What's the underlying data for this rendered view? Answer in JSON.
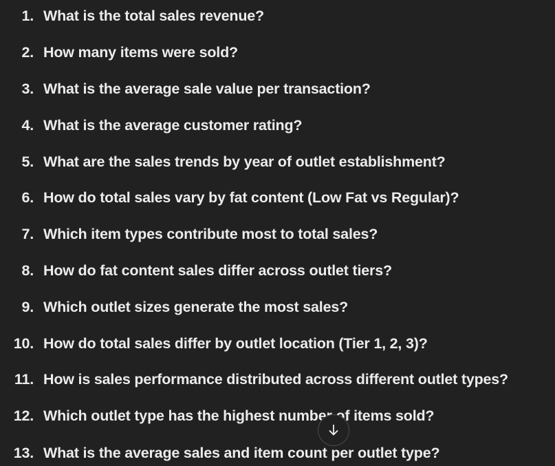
{
  "questions": [
    {
      "num": "1.",
      "text": "What is the total sales revenue?"
    },
    {
      "num": "2.",
      "text": "How many items were sold?"
    },
    {
      "num": "3.",
      "text": "What is the average sale value per transaction?"
    },
    {
      "num": "4.",
      "text": "What is the average customer rating?"
    },
    {
      "num": "5.",
      "text": "What are the sales trends by year of outlet establishment?"
    },
    {
      "num": "6.",
      "text": "How do total sales vary by fat content (Low Fat vs Regular)?"
    },
    {
      "num": "7.",
      "text": "Which item types contribute most to total sales?"
    },
    {
      "num": "8.",
      "text": "How do fat content sales differ across outlet tiers?"
    },
    {
      "num": "9.",
      "text": "Which outlet sizes generate the most sales?"
    },
    {
      "num": "10.",
      "text": "How do total sales differ by outlet location (Tier 1, 2, 3)?"
    },
    {
      "num": "11.",
      "text": "How is sales performance distributed across different outlet types?"
    },
    {
      "num": "12.",
      "text": "Which outlet type has the highest number of items sold?"
    },
    {
      "num": "13.",
      "text": "What is the average sales and item count per outlet type?"
    }
  ],
  "scroll_button": {
    "icon": "arrow-down-icon"
  },
  "colors": {
    "background": "#212121",
    "text": "#ececec",
    "button_border": "#4a4a4a"
  }
}
